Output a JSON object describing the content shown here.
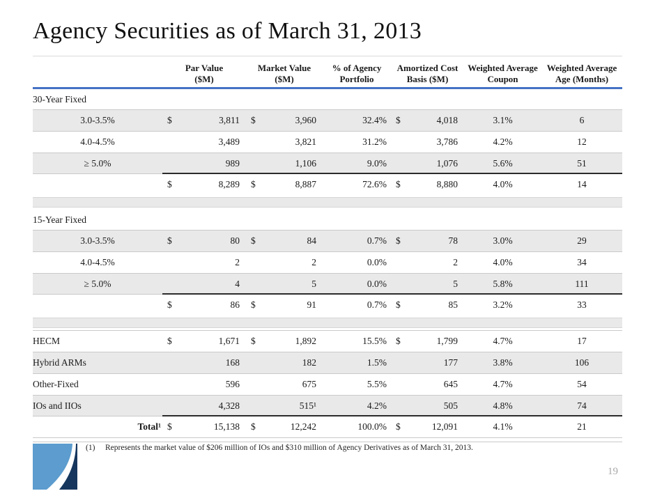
{
  "slide": {
    "title": "Agency Securities as of March 31, 2013",
    "page_number": "19"
  },
  "colors": {
    "header_rule_blue": "#4472C4",
    "row_shade_gray": "#E9E9E9",
    "subtotal_rule_black": "#2B2B2B",
    "logo_light_blue": "#5C9CCE",
    "logo_navy": "#17365D",
    "footnote_bar_navy": "#1F3864"
  },
  "table": {
    "headers": [
      {
        "line1": "",
        "line2": ""
      },
      {
        "line1": "Par Value",
        "line2": "($M)"
      },
      {
        "line1": "Market Value",
        "line2": "($M)"
      },
      {
        "line1": "% of Agency",
        "line2": "Portfolio"
      },
      {
        "line1": "Amortized Cost",
        "line2": "Basis ($M)"
      },
      {
        "line1": "Weighted Average",
        "line2": "Coupon"
      },
      {
        "line1": "Weighted Average",
        "line2": "Age (Months)"
      }
    ],
    "rows": [
      {
        "type": "section",
        "label": "30-Year Fixed"
      },
      {
        "type": "data",
        "shaded": true,
        "indent": true,
        "label": "3.0-3.5%",
        "par_d": "$",
        "par": "3,811",
        "mkt_d": "$",
        "mkt": "3,960",
        "pct": "32.4%",
        "cost_d": "$",
        "cost": "4,018",
        "coupon": "3.1%",
        "age": "6"
      },
      {
        "type": "data",
        "shaded": false,
        "indent": true,
        "label": "4.0-4.5%",
        "par_d": "",
        "par": "3,489",
        "mkt_d": "",
        "mkt": "3,821",
        "pct": "31.2%",
        "cost_d": "",
        "cost": "3,786",
        "coupon": "4.2%",
        "age": "12"
      },
      {
        "type": "data",
        "shaded": true,
        "indent": true,
        "label": "≥ 5.0%",
        "par_d": "",
        "par": "989",
        "mkt_d": "",
        "mkt": "1,106",
        "pct": "9.0%",
        "cost_d": "",
        "cost": "1,076",
        "coupon": "5.6%",
        "age": "51"
      },
      {
        "type": "subtotal",
        "label": "",
        "par_d": "$",
        "par": "8,289",
        "mkt_d": "$",
        "mkt": "8,887",
        "pct": "72.6%",
        "cost_d": "$",
        "cost": "8,880",
        "coupon": "4.0%",
        "age": "14"
      },
      {
        "type": "spacer"
      },
      {
        "type": "section",
        "label": "15-Year Fixed"
      },
      {
        "type": "data",
        "shaded": true,
        "indent": true,
        "label": "3.0-3.5%",
        "par_d": "$",
        "par": "80",
        "mkt_d": "$",
        "mkt": "84",
        "pct": "0.7%",
        "cost_d": "$",
        "cost": "78",
        "coupon": "3.0%",
        "age": "29"
      },
      {
        "type": "data",
        "shaded": false,
        "indent": true,
        "label": "4.0-4.5%",
        "par_d": "",
        "par": "2",
        "mkt_d": "",
        "mkt": "2",
        "pct": "0.0%",
        "cost_d": "",
        "cost": "2",
        "coupon": "4.0%",
        "age": "34"
      },
      {
        "type": "data",
        "shaded": true,
        "indent": true,
        "label": "≥ 5.0%",
        "par_d": "",
        "par": "4",
        "mkt_d": "",
        "mkt": "5",
        "pct": "0.0%",
        "cost_d": "",
        "cost": "5",
        "coupon": "5.8%",
        "age": "111"
      },
      {
        "type": "subtotal",
        "label": "",
        "par_d": "$",
        "par": "86",
        "mkt_d": "$",
        "mkt": "91",
        "pct": "0.7%",
        "cost_d": "$",
        "cost": "85",
        "coupon": "3.2%",
        "age": "33"
      },
      {
        "type": "spacer"
      },
      {
        "type": "data",
        "shaded": false,
        "indent": false,
        "label": "HECM",
        "par_d": "$",
        "par": "1,671",
        "mkt_d": "$",
        "mkt": "1,892",
        "pct": "15.5%",
        "cost_d": "$",
        "cost": "1,799",
        "coupon": "4.7%",
        "age": "17"
      },
      {
        "type": "data",
        "shaded": true,
        "indent": false,
        "label": "Hybrid ARMs",
        "par_d": "",
        "par": "168",
        "mkt_d": "",
        "mkt": "182",
        "pct": "1.5%",
        "cost_d": "",
        "cost": "177",
        "coupon": "3.8%",
        "age": "106"
      },
      {
        "type": "data",
        "shaded": false,
        "indent": false,
        "label": "Other-Fixed",
        "par_d": "",
        "par": "596",
        "mkt_d": "",
        "mkt": "675",
        "pct": "5.5%",
        "cost_d": "",
        "cost": "645",
        "coupon": "4.7%",
        "age": "54"
      },
      {
        "type": "data",
        "shaded": true,
        "indent": false,
        "label": "IOs and IIOs",
        "par_d": "",
        "par": "4,328",
        "mkt_d": "",
        "mkt": "515¹",
        "pct": "4.2%",
        "cost_d": "",
        "cost": "505",
        "coupon": "4.8%",
        "age": "74"
      },
      {
        "type": "total",
        "label": "Total¹",
        "par_d": "$",
        "par": "15,138",
        "mkt_d": "$",
        "mkt": "12,242",
        "pct": "100.0%",
        "cost_d": "$",
        "cost": "12,091",
        "coupon": "4.1%",
        "age": "21"
      }
    ]
  },
  "footnote": {
    "marker": "(1)",
    "text": "Represents the market value of $206 million of IOs and $310 million of Agency Derivatives as of March 31, 2013."
  }
}
